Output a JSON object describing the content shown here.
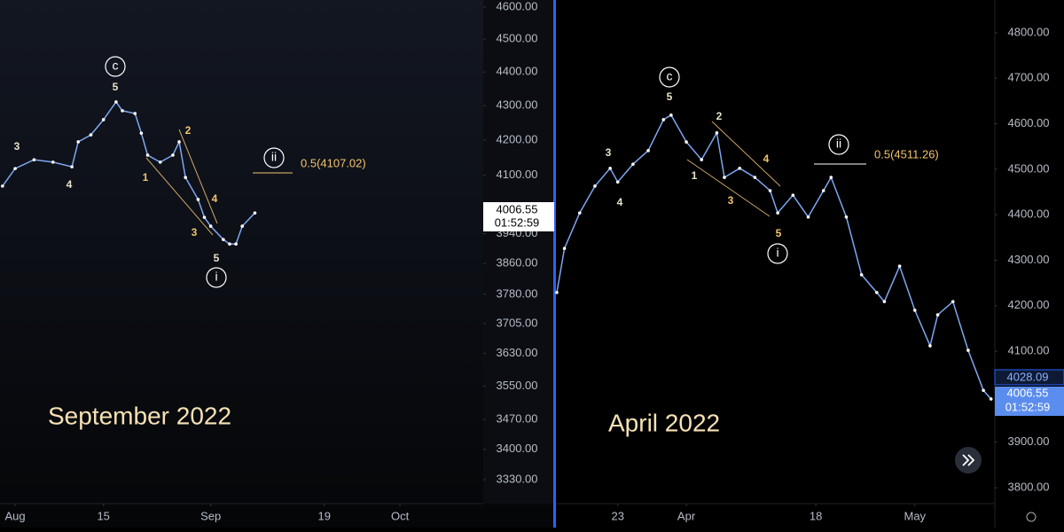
{
  "chart_data": [
    {
      "type": "line",
      "color": "#7fa7f0",
      "log": true,
      "x": [
        211,
        213,
        216,
        219,
        222,
        223,
        225,
        227,
        229,
        230,
        232,
        233,
        234,
        236,
        238,
        239,
        240,
        242,
        243,
        244,
        246,
        247,
        248,
        249,
        251
      ],
      "values": [
        4070,
        4119,
        4144,
        4137,
        4124,
        4195,
        4215,
        4259,
        4311,
        4285,
        4277,
        4220,
        4157,
        4137,
        4157,
        4195,
        4094,
        4033,
        3984,
        3960,
        3924,
        3912,
        3912,
        3960,
        3996
      ],
      "xlim": [
        210.6,
        287.2
      ],
      "ylim": [
        3276,
        4622
      ],
      "xticks": [
        {
          "value": 213,
          "label": "Aug"
        },
        {
          "value": 227,
          "label": "15"
        },
        {
          "value": 244,
          "label": "Sep"
        },
        {
          "value": 262,
          "label": "19"
        },
        {
          "value": 274,
          "label": "Oct"
        }
      ],
      "yticks": [
        {
          "value": 4600,
          "label": "4600.00"
        },
        {
          "value": 4500,
          "label": "4500.00"
        },
        {
          "value": 4400,
          "label": "4400.00"
        },
        {
          "value": 4300,
          "label": "4300.00"
        },
        {
          "value": 4200,
          "label": "4200.00"
        },
        {
          "value": 4100,
          "label": "4100.00"
        },
        {
          "value": 3940,
          "label": "3940.00"
        },
        {
          "value": 3860,
          "label": "3860.00"
        },
        {
          "value": 3780,
          "label": "3780.00"
        },
        {
          "value": 3705,
          "label": "3705.00"
        },
        {
          "value": 3630,
          "label": "3630.00"
        },
        {
          "value": 3550,
          "label": "3550.00"
        },
        {
          "value": 3470,
          "label": "3470.00"
        },
        {
          "value": 3400,
          "label": "3400.00"
        },
        {
          "value": 3330,
          "label": "3330.00"
        }
      ],
      "annotations": {
        "title": "September 2022",
        "wave_c": "c",
        "w5_top": "5",
        "w3_left": "3",
        "w4_left": "4",
        "w1": "1",
        "w2": "2",
        "w3": "3",
        "w4": "4",
        "w5": "5",
        "wave_i": "i",
        "wave_ii": "ii",
        "fib": "0.5(4107.02)"
      },
      "price_label": {
        "price": "4006.55",
        "timer": "01:52:59"
      }
    },
    {
      "type": "line",
      "color": "#7fa7f0",
      "log": false,
      "x": [
        74,
        75,
        77,
        79,
        81,
        82,
        84,
        86,
        88,
        89,
        91,
        93,
        95,
        96,
        98,
        100,
        102,
        103,
        105,
        107,
        109,
        110,
        112,
        114,
        116,
        117,
        119,
        121,
        123,
        124,
        126,
        128,
        130,
        131
      ],
      "values": [
        4229,
        4326,
        4404,
        4463,
        4502,
        4472,
        4511,
        4541,
        4609,
        4619,
        4560,
        4521,
        4580,
        4482,
        4502,
        4482,
        4453,
        4404,
        4443,
        4395,
        4453,
        4482,
        4395,
        4268,
        4229,
        4209,
        4287,
        4190,
        4112,
        4180,
        4209,
        4102,
        4014,
        3995
      ],
      "xlim": [
        74,
        131.5
      ],
      "ylim": [
        3765,
        4872
      ],
      "xticks": [
        {
          "value": 82,
          "label": "23"
        },
        {
          "value": 91,
          "label": "Apr"
        },
        {
          "value": 108,
          "label": "18"
        },
        {
          "value": 121,
          "label": "May"
        }
      ],
      "yticks": [
        {
          "value": 4800,
          "label": "4800.00"
        },
        {
          "value": 4700,
          "label": "4700.00"
        },
        {
          "value": 4600,
          "label": "4600.00"
        },
        {
          "value": 4500,
          "label": "4500.00"
        },
        {
          "value": 4400,
          "label": "4400.00"
        },
        {
          "value": 4300,
          "label": "4300.00"
        },
        {
          "value": 4200,
          "label": "4200.00"
        },
        {
          "value": 4100,
          "label": "4100.00"
        },
        {
          "value": 3900,
          "label": "3900.00"
        },
        {
          "value": 3800,
          "label": "3800.00"
        }
      ],
      "annotations": {
        "title": "April 2022",
        "wave_c": "c",
        "w5_top": "5",
        "w3_left": "3",
        "w4_left": "4",
        "w1": "1",
        "w2": "2",
        "w3": "3",
        "w4": "4",
        "w5": "5",
        "wave_i": "i",
        "wave_ii": "ii",
        "fib": "0.5(4511.26)"
      },
      "price_label": {
        "last": "4028.09",
        "price": "4006.55",
        "timer": "01:52:59"
      }
    }
  ]
}
